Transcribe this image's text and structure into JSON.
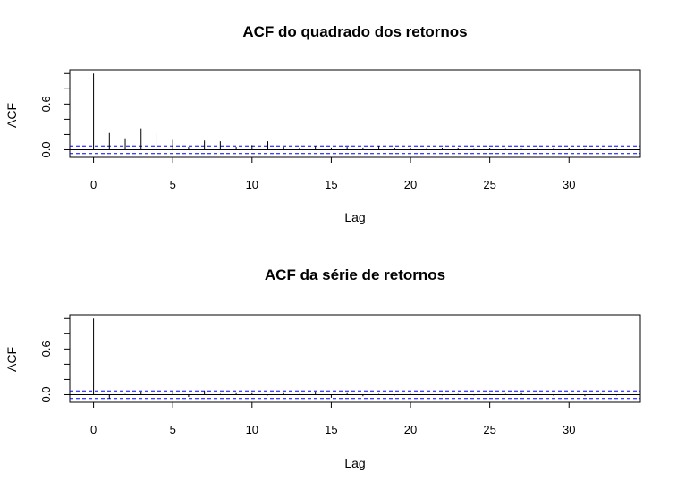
{
  "chart_data": [
    {
      "type": "bar",
      "subtype": "acf",
      "title": "ACF do quadrado dos retornos",
      "xlabel": "Lag",
      "ylabel": "ACF",
      "xlim": [
        -1.5,
        34.5
      ],
      "ylim": [
        -0.1,
        1.05
      ],
      "xticks": [
        0,
        5,
        10,
        15,
        20,
        25,
        30
      ],
      "xtick_labels": [
        "0",
        "5",
        "10",
        "15",
        "20",
        "25",
        "30"
      ],
      "yticks": [
        0.0,
        0.6
      ],
      "ytick_labels": [
        "0.0",
        "0.6"
      ],
      "confidence_band": [
        -0.05,
        0.05
      ],
      "grid": false,
      "x": [
        0,
        1,
        2,
        3,
        4,
        5,
        6,
        7,
        8,
        9,
        10,
        11,
        12,
        13,
        14,
        15,
        16,
        17,
        18,
        19,
        20,
        21,
        22,
        23,
        24,
        25,
        26,
        27,
        28,
        29,
        30,
        31,
        32,
        33
      ],
      "values": [
        1.0,
        0.22,
        0.15,
        0.28,
        0.22,
        0.13,
        0.04,
        0.12,
        0.11,
        0.04,
        0.06,
        0.11,
        0.04,
        0.02,
        0.05,
        0.03,
        0.04,
        0.03,
        0.05,
        0.02,
        0.02,
        0.01,
        0.02,
        0.02,
        0.01,
        0.02,
        0.01,
        0.01,
        0.02,
        0.01,
        0.02,
        0.01,
        0.01,
        0.01
      ]
    },
    {
      "type": "bar",
      "subtype": "acf",
      "title": "ACF da série de retornos",
      "xlabel": "Lag",
      "ylabel": "ACF",
      "xlim": [
        -1.5,
        34.5
      ],
      "ylim": [
        -0.1,
        1.05
      ],
      "xticks": [
        0,
        5,
        10,
        15,
        20,
        25,
        30
      ],
      "xtick_labels": [
        "0",
        "5",
        "10",
        "15",
        "20",
        "25",
        "30"
      ],
      "yticks": [
        0.0,
        0.6
      ],
      "ytick_labels": [
        "0.0",
        "0.6"
      ],
      "confidence_band": [
        -0.05,
        0.05
      ],
      "grid": false,
      "x": [
        0,
        1,
        2,
        3,
        4,
        5,
        6,
        7,
        8,
        9,
        10,
        11,
        12,
        13,
        14,
        15,
        16,
        17,
        18,
        19,
        20,
        21,
        22,
        23,
        24,
        25,
        26,
        27,
        28,
        29,
        30,
        31,
        32,
        33
      ],
      "values": [
        1.0,
        -0.05,
        0.01,
        0.03,
        0.01,
        0.04,
        -0.03,
        0.05,
        0.01,
        0.02,
        0.02,
        -0.01,
        0.02,
        0.01,
        0.03,
        -0.04,
        0.02,
        -0.02,
        0.01,
        -0.01,
        0.01,
        0.0,
        -0.01,
        0.01,
        -0.01,
        0.01,
        0.01,
        0.02,
        0.01,
        -0.01,
        0.01,
        -0.02,
        0.01,
        -0.01
      ]
    }
  ],
  "style": {
    "line_color": "#000000",
    "band_color": "#0000ff"
  }
}
